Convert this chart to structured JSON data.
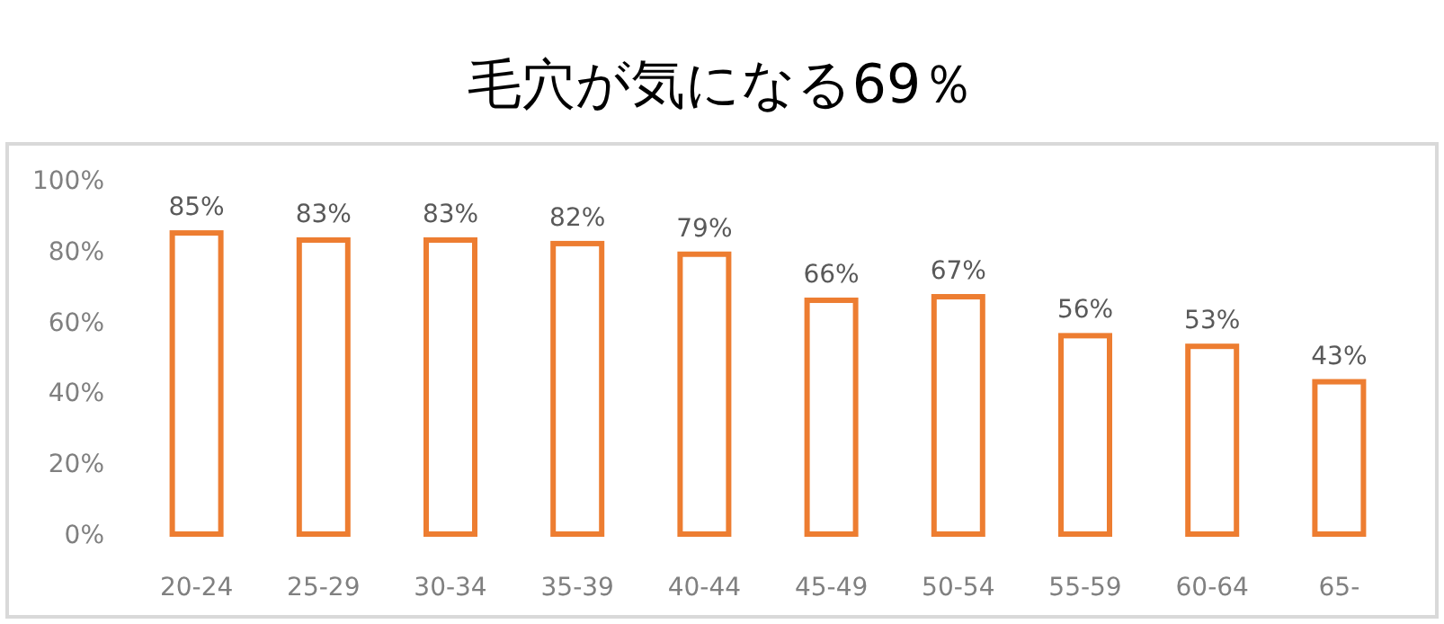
{
  "chart_data": {
    "type": "bar",
    "title": "毛穴が気になる69％",
    "categories": [
      "20-24",
      "25-29",
      "30-34",
      "35-39",
      "40-44",
      "45-49",
      "50-54",
      "55-59",
      "60-64",
      "65-"
    ],
    "values": [
      85,
      83,
      83,
      82,
      79,
      66,
      67,
      56,
      53,
      43
    ],
    "value_labels": [
      "85%",
      "83%",
      "83%",
      "82%",
      "79%",
      "66%",
      "67%",
      "56%",
      "53%",
      "43%"
    ],
    "color": "#ed7d31",
    "ylim": [
      0,
      100
    ],
    "yticks": [
      {
        "value": 0,
        "label": "0%"
      },
      {
        "value": 20,
        "label": "20%"
      },
      {
        "value": 40,
        "label": "40%"
      },
      {
        "value": 60,
        "label": "60%"
      },
      {
        "value": 80,
        "label": "80%"
      },
      {
        "value": 100,
        "label": "100%"
      }
    ],
    "grid": false
  }
}
